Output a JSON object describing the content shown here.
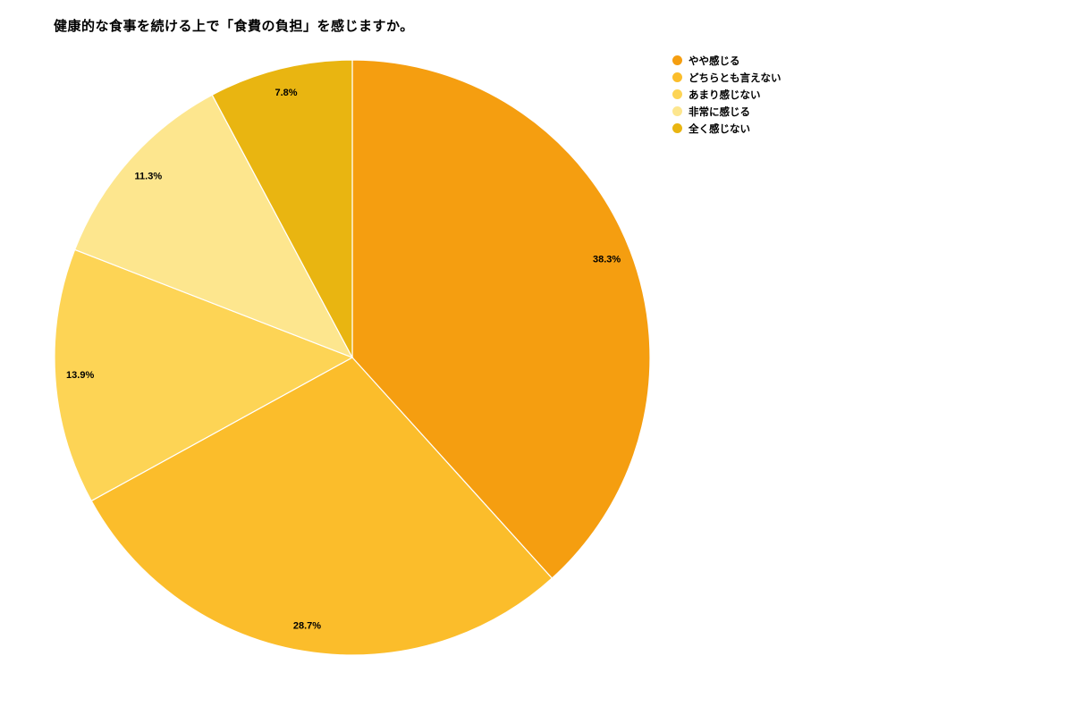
{
  "chart_data": {
    "type": "pie",
    "title": "健康的な食事を続ける上で「食費の負担」を感じますか。",
    "categories": [
      "やや感じる",
      "どちらとも言えない",
      "あまり感じない",
      "非常に感じる",
      "全く感じない"
    ],
    "values": [
      38.3,
      28.7,
      13.9,
      11.3,
      7.8
    ],
    "labels": [
      "38.3%",
      "28.7%",
      "13.9%",
      "11.3%",
      "7.8%"
    ],
    "colors": [
      "#F59E10",
      "#FBBD2B",
      "#FDD455",
      "#FDE68E",
      "#E9B511"
    ],
    "legend_position": "top-right",
    "start_angle": "12 o'clock",
    "direction": "clockwise"
  }
}
